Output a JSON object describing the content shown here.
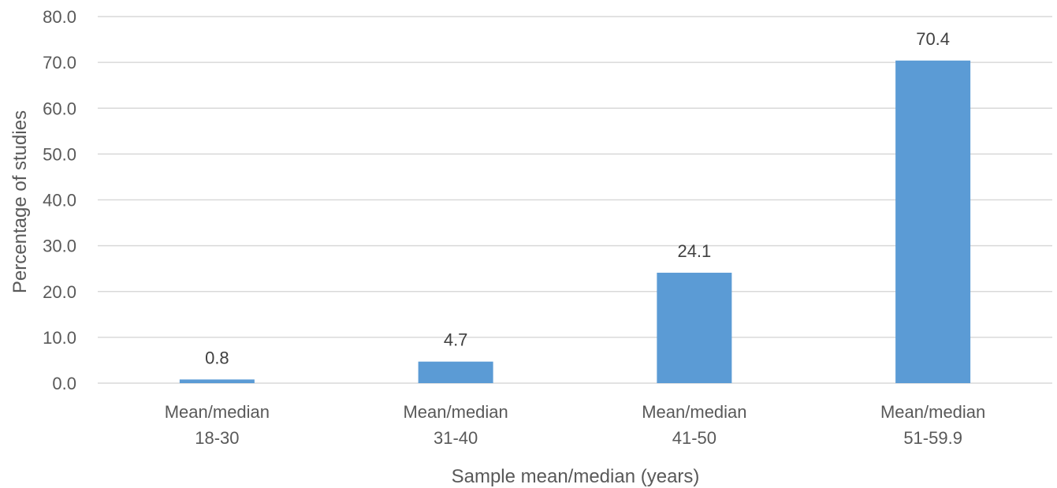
{
  "chart_data": {
    "type": "bar",
    "categories": [
      [
        "Mean/median",
        "18-30"
      ],
      [
        "Mean/median",
        "31-40"
      ],
      [
        "Mean/median",
        "41-50"
      ],
      [
        "Mean/median",
        "51-59.9"
      ]
    ],
    "values": [
      0.8,
      4.7,
      24.1,
      70.4
    ],
    "data_labels": [
      "0.8",
      "4.7",
      "24.1",
      "70.4"
    ],
    "xlabel": "Sample mean/median (years)",
    "ylabel": "Percentage of studies",
    "ylim": [
      0,
      80
    ],
    "yticks": [
      "0.0",
      "10.0",
      "20.0",
      "30.0",
      "40.0",
      "50.0",
      "60.0",
      "70.0",
      "80.0"
    ],
    "grid": true,
    "bar_color": "#5b9bd5"
  }
}
